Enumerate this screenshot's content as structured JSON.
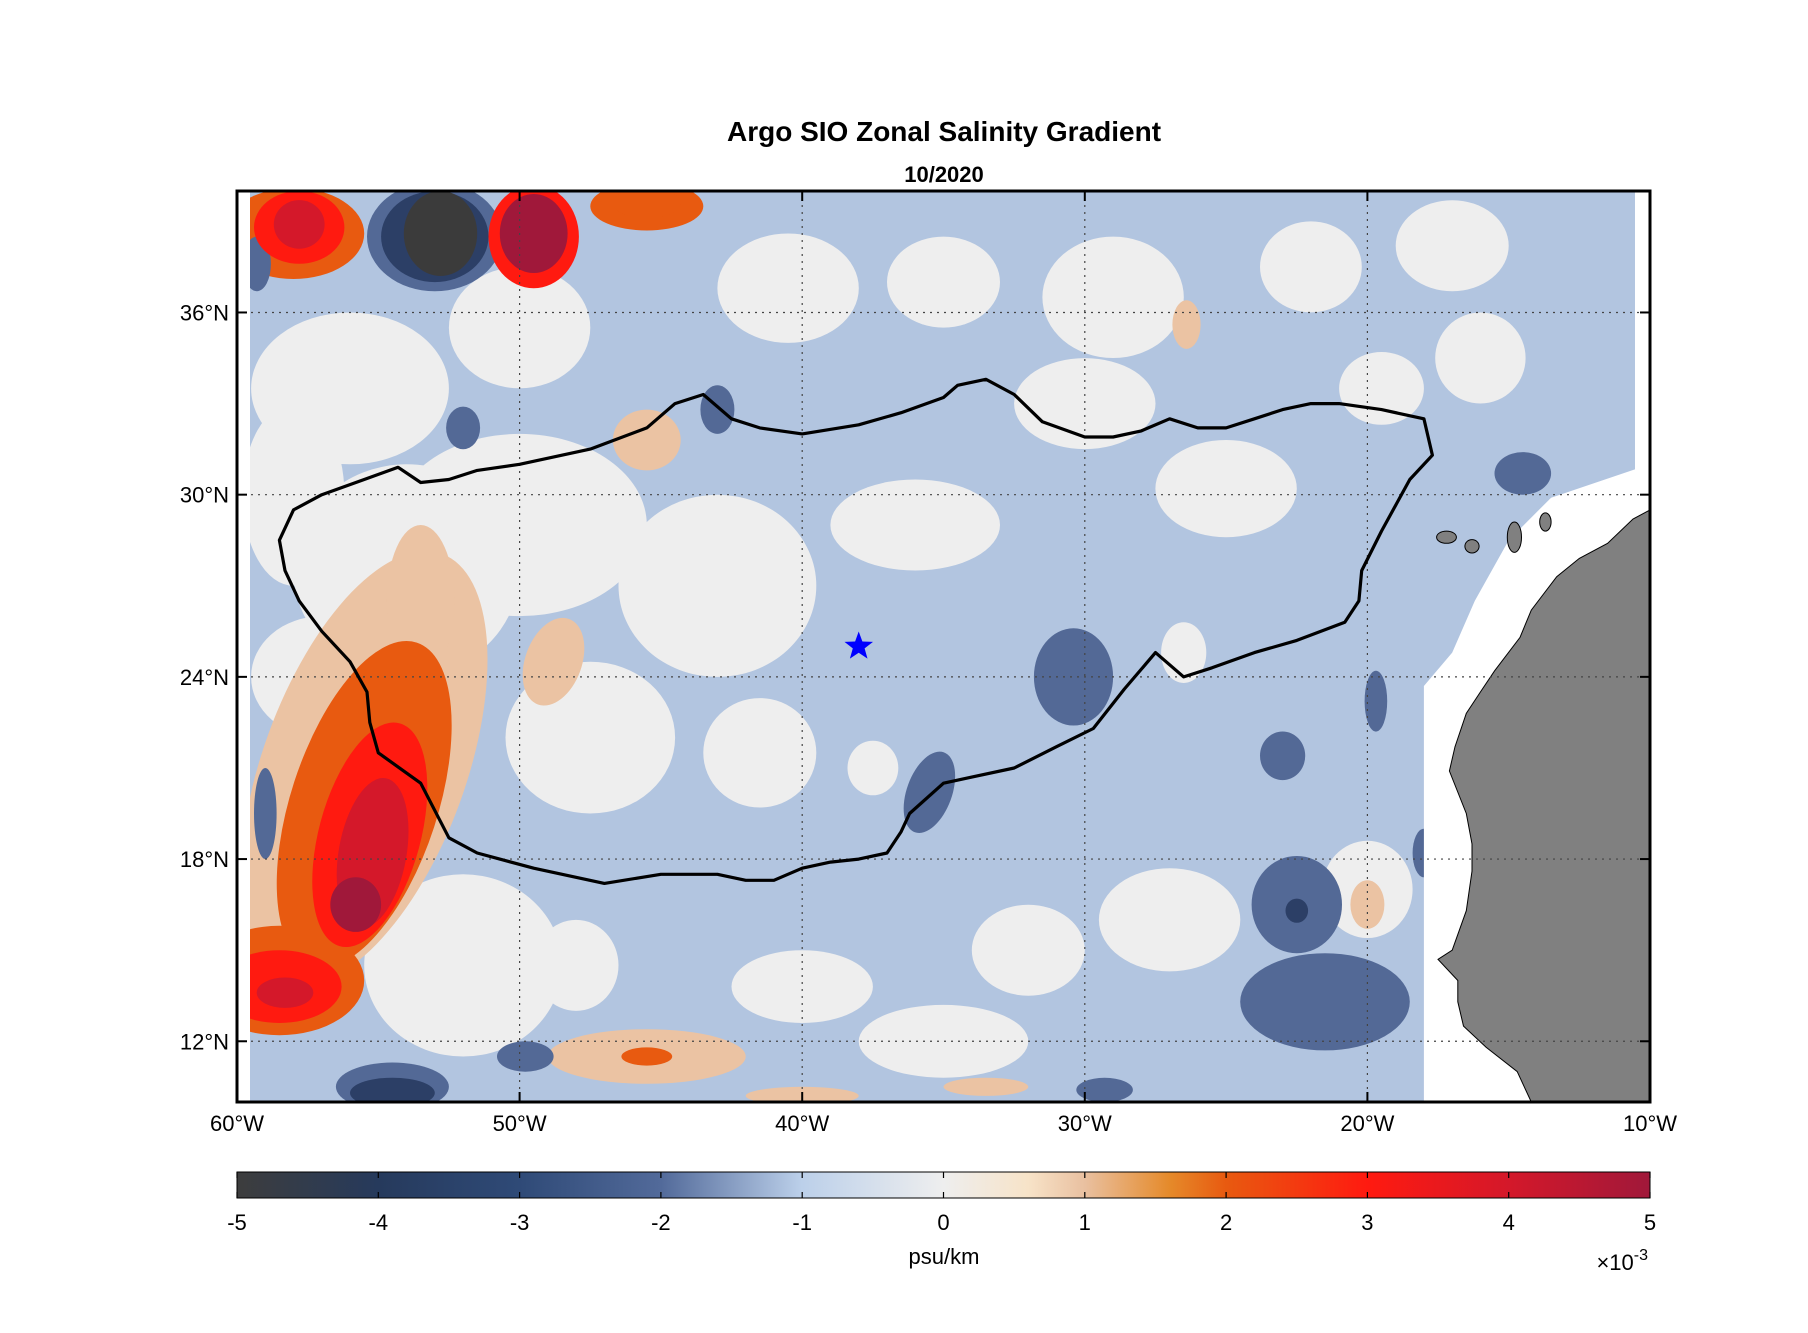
{
  "title": "Argo SIO Zonal Salinity Gradient",
  "subtitle": "10/2020",
  "map": {
    "lon_range": [
      -60,
      -10
    ],
    "lat_range": [
      10,
      40
    ],
    "x_ticks": [
      {
        "value": -60,
        "label": "60°W"
      },
      {
        "value": -50,
        "label": "50°W"
      },
      {
        "value": -40,
        "label": "40°W"
      },
      {
        "value": -30,
        "label": "30°W"
      },
      {
        "value": -20,
        "label": "20°W"
      },
      {
        "value": -10,
        "label": "10°W"
      }
    ],
    "y_ticks": [
      {
        "value": 12,
        "label": "12°N"
      },
      {
        "value": 18,
        "label": "18°N"
      },
      {
        "value": 24,
        "label": "24°N"
      },
      {
        "value": 30,
        "label": "30°N"
      },
      {
        "value": 36,
        "label": "36°N"
      }
    ],
    "grid": true,
    "land_color": "#808080",
    "marker": {
      "lon": -38,
      "lat": 25,
      "symbol": "star",
      "color": "#0000ff"
    },
    "outline": [
      [
        -58,
        29.5
      ],
      [
        -57,
        30
      ],
      [
        -55.5,
        30.5
      ],
      [
        -54.3,
        30.9
      ],
      [
        -53.5,
        30.4
      ],
      [
        -52.5,
        30.5
      ],
      [
        -51.5,
        30.8
      ],
      [
        -50,
        31
      ],
      [
        -47.5,
        31.5
      ],
      [
        -45.5,
        32.2
      ],
      [
        -44.5,
        33
      ],
      [
        -43.5,
        33.3
      ],
      [
        -42.5,
        32.5
      ],
      [
        -41.5,
        32.2
      ],
      [
        -40,
        32
      ],
      [
        -38,
        32.3
      ],
      [
        -36.5,
        32.7
      ],
      [
        -35,
        33.2
      ],
      [
        -34.5,
        33.6
      ],
      [
        -33.5,
        33.8
      ],
      [
        -32.5,
        33.3
      ],
      [
        -31.5,
        32.4
      ],
      [
        -30,
        31.9
      ],
      [
        -29,
        31.9
      ],
      [
        -28,
        32.1
      ],
      [
        -27,
        32.5
      ],
      [
        -26,
        32.2
      ],
      [
        -25,
        32.2
      ],
      [
        -24,
        32.5
      ],
      [
        -23,
        32.8
      ],
      [
        -22,
        33
      ],
      [
        -21,
        33
      ],
      [
        -19.5,
        32.8
      ],
      [
        -18,
        32.5
      ],
      [
        -17.7,
        31.3
      ],
      [
        -18.5,
        30.5
      ],
      [
        -19.5,
        28.8
      ],
      [
        -20.2,
        27.5
      ],
      [
        -20.3,
        26.5
      ],
      [
        -20.8,
        25.8
      ],
      [
        -22.5,
        25.2
      ],
      [
        -24,
        24.8
      ],
      [
        -25.5,
        24.3
      ],
      [
        -26.5,
        24
      ],
      [
        -27.5,
        24.8
      ],
      [
        -28.6,
        23.6
      ],
      [
        -29.7,
        22.3
      ],
      [
        -31,
        21.7
      ],
      [
        -32.5,
        21
      ],
      [
        -34,
        20.7
      ],
      [
        -35,
        20.5
      ],
      [
        -36.2,
        19.5
      ],
      [
        -36.5,
        18.9
      ],
      [
        -37,
        18.2
      ],
      [
        -38,
        18
      ],
      [
        -39,
        17.9
      ],
      [
        -40,
        17.7
      ],
      [
        -41,
        17.3
      ],
      [
        -42,
        17.3
      ],
      [
        -43,
        17.5
      ],
      [
        -45,
        17.5
      ],
      [
        -47,
        17.2
      ],
      [
        -49.5,
        17.7
      ],
      [
        -51.5,
        18.2
      ],
      [
        -52.5,
        18.7
      ],
      [
        -53.5,
        20.5
      ],
      [
        -55,
        21.5
      ],
      [
        -55.3,
        22.5
      ],
      [
        -55.4,
        23.5
      ],
      [
        -56,
        24.5
      ],
      [
        -57,
        25.5
      ],
      [
        -57.8,
        26.5
      ],
      [
        -58.3,
        27.5
      ],
      [
        -58.5,
        28.5
      ],
      [
        -58,
        29.5
      ]
    ]
  },
  "colorbar": {
    "range": [
      -5,
      5
    ],
    "ticks": [
      "-5",
      "-4",
      "-3",
      "-2",
      "-1",
      "0",
      "1",
      "2",
      "3",
      "4",
      "5"
    ],
    "label": "psu/km",
    "exponent_base": "×10",
    "exponent": "-3",
    "stops": [
      {
        "value": -5,
        "color": "#3d3d3d"
      },
      {
        "value": -4,
        "color": "#263a5c"
      },
      {
        "value": -3,
        "color": "#2f4a77"
      },
      {
        "value": -2,
        "color": "#526a9a"
      },
      {
        "value": -1,
        "color": "#bcd0ea"
      },
      {
        "value": 0,
        "color": "#eeeeee"
      },
      {
        "value": 0.6,
        "color": "#f7e3c8"
      },
      {
        "value": 1,
        "color": "#e9c0a0"
      },
      {
        "value": 1.6,
        "color": "#e58a2a"
      },
      {
        "value": 2,
        "color": "#e85a10"
      },
      {
        "value": 3,
        "color": "#ff1a10"
      },
      {
        "value": 4,
        "color": "#d4182a"
      },
      {
        "value": 5,
        "color": "#a0183a"
      }
    ]
  },
  "chart_data": {
    "type": "heatmap",
    "title": "Argo SIO Zonal Salinity Gradient",
    "subtitle": "10/2020",
    "colorbar_label": "psu/km",
    "colorbar_scale": "×10^-3",
    "value_range": [
      -5,
      5
    ],
    "background_value": -1,
    "features": [
      {
        "type": "ellipse",
        "lon": -55.5,
        "lat": 21.0,
        "rx": 3.6,
        "ry": 7.5,
        "value": 0.8,
        "rot": 20
      },
      {
        "type": "ellipse",
        "lon": -55.5,
        "lat": 19.8,
        "rx": 2.6,
        "ry": 5.6,
        "value": 2.2,
        "rot": 18
      },
      {
        "type": "ellipse",
        "lon": -55.3,
        "lat": 18.8,
        "rx": 1.8,
        "ry": 3.8,
        "value": 3.0,
        "rot": 15
      },
      {
        "type": "ellipse",
        "lon": -55.2,
        "lat": 18.2,
        "rx": 1.2,
        "ry": 2.5,
        "value": 4.0,
        "rot": 10
      },
      {
        "type": "ellipse",
        "lon": -55.8,
        "lat": 16.5,
        "rx": 0.9,
        "ry": 0.9,
        "value": 5.0,
        "rot": 0
      },
      {
        "type": "ellipse",
        "lon": -58.5,
        "lat": 14.0,
        "rx": 3.0,
        "ry": 1.8,
        "value": 2.2,
        "rot": 0
      },
      {
        "type": "ellipse",
        "lon": -58.5,
        "lat": 13.8,
        "rx": 2.2,
        "ry": 1.2,
        "value": 3.0,
        "rot": 0
      },
      {
        "type": "ellipse",
        "lon": -58.3,
        "lat": 13.6,
        "rx": 1.0,
        "ry": 0.5,
        "value": 4.0,
        "rot": 0
      },
      {
        "type": "ellipse",
        "lon": -53.5,
        "lat": 26.5,
        "rx": 1.2,
        "ry": 2.5,
        "value": 0.8,
        "rot": 0
      },
      {
        "type": "ellipse",
        "lon": -48.8,
        "lat": 24.5,
        "rx": 1.0,
        "ry": 1.5,
        "value": 0.8,
        "rot": 20
      },
      {
        "type": "ellipse",
        "lon": -45.5,
        "lat": 31.8,
        "rx": 1.2,
        "ry": 1.0,
        "value": 0.8,
        "rot": 0
      },
      {
        "type": "ellipse",
        "lon": -26.4,
        "lat": 35.6,
        "rx": 0.5,
        "ry": 0.8,
        "value": 0.8,
        "rot": 0
      },
      {
        "type": "ellipse",
        "lon": -20,
        "lat": 16.5,
        "rx": 0.6,
        "ry": 0.8,
        "value": 0.8,
        "rot": 0
      },
      {
        "type": "ellipse",
        "lon": -45.5,
        "lat": 11.5,
        "rx": 3.5,
        "ry": 0.9,
        "value": 0.8,
        "rot": 0
      },
      {
        "type": "ellipse",
        "lon": -45.5,
        "lat": 11.5,
        "rx": 0.9,
        "ry": 0.3,
        "value": 2.0,
        "rot": 0
      },
      {
        "type": "ellipse",
        "lon": -40,
        "lat": 10.2,
        "rx": 2.0,
        "ry": 0.3,
        "value": 0.8,
        "rot": 0
      },
      {
        "type": "ellipse",
        "lon": -33.5,
        "lat": 10.5,
        "rx": 1.5,
        "ry": 0.3,
        "value": 0.8,
        "rot": 0
      },
      {
        "type": "ellipse",
        "lon": -49.5,
        "lat": 38.5,
        "rx": 1.6,
        "ry": 1.7,
        "value": 3.0,
        "rot": 0
      },
      {
        "type": "ellipse",
        "lon": -49.5,
        "lat": 38.6,
        "rx": 1.2,
        "ry": 1.3,
        "value": 5.0,
        "rot": 0
      },
      {
        "type": "ellipse",
        "lon": -58,
        "lat": 38.6,
        "rx": 2.5,
        "ry": 1.5,
        "value": 2.0,
        "rot": 0
      },
      {
        "type": "ellipse",
        "lon": -57.8,
        "lat": 38.8,
        "rx": 1.6,
        "ry": 1.2,
        "value": 3.0,
        "rot": 0
      },
      {
        "type": "ellipse",
        "lon": -57.8,
        "lat": 38.9,
        "rx": 0.9,
        "ry": 0.8,
        "value": 4.0,
        "rot": 0
      },
      {
        "type": "ellipse",
        "lon": -53,
        "lat": 38.5,
        "rx": 2.4,
        "ry": 1.8,
        "value": -2.0,
        "rot": 0
      },
      {
        "type": "ellipse",
        "lon": -53,
        "lat": 38.5,
        "rx": 1.9,
        "ry": 1.5,
        "value": -3.0,
        "rot": 0
      },
      {
        "type": "ellipse",
        "lon": -52.8,
        "lat": 38.6,
        "rx": 1.3,
        "ry": 1.4,
        "value": -5.0,
        "rot": 0
      },
      {
        "type": "ellipse",
        "lon": -45.5,
        "lat": 39.5,
        "rx": 2.0,
        "ry": 0.8,
        "value": 1.5,
        "rot": 0
      },
      {
        "type": "ellipse",
        "lon": -45.5,
        "lat": 39.6,
        "rx": 1.2,
        "ry": 0.5,
        "value": 2.2,
        "rot": 0
      },
      {
        "type": "ellipse",
        "lon": -54.5,
        "lat": 10.5,
        "rx": 2.0,
        "ry": 0.8,
        "value": -2.0,
        "rot": 0
      },
      {
        "type": "ellipse",
        "lon": -54.5,
        "lat": 10.3,
        "rx": 1.5,
        "ry": 0.5,
        "value": -3.0,
        "rot": 0
      },
      {
        "type": "ellipse",
        "lon": -49.8,
        "lat": 11.5,
        "rx": 1.0,
        "ry": 0.5,
        "value": -2.0,
        "rot": 0
      },
      {
        "type": "ellipse",
        "lon": -30.4,
        "lat": 24.0,
        "rx": 1.4,
        "ry": 1.6,
        "value": -2.0,
        "rot": 0
      },
      {
        "type": "ellipse",
        "lon": -35.5,
        "lat": 20.2,
        "rx": 0.8,
        "ry": 1.4,
        "value": -2.0,
        "rot": 20
      },
      {
        "type": "ellipse",
        "lon": -22.5,
        "lat": 16.5,
        "rx": 1.6,
        "ry": 1.6,
        "value": -2.0,
        "rot": 0
      },
      {
        "type": "ellipse",
        "lon": -22.5,
        "lat": 16.3,
        "rx": 0.4,
        "ry": 0.4,
        "value": -3.0,
        "rot": 0
      },
      {
        "type": "ellipse",
        "lon": -21.5,
        "lat": 13.3,
        "rx": 3.0,
        "ry": 1.6,
        "value": -2.0,
        "rot": 0
      },
      {
        "type": "ellipse",
        "lon": -23,
        "lat": 21.4,
        "rx": 0.8,
        "ry": 0.8,
        "value": -2.0,
        "rot": 0
      },
      {
        "type": "ellipse",
        "lon": -19.7,
        "lat": 23.2,
        "rx": 0.4,
        "ry": 1.0,
        "value": -2.0,
        "rot": 0
      },
      {
        "type": "ellipse",
        "lon": -14.5,
        "lat": 30.7,
        "rx": 1.0,
        "ry": 0.7,
        "value": -2.0,
        "rot": 0
      },
      {
        "type": "ellipse",
        "lon": -52,
        "lat": 32.2,
        "rx": 0.6,
        "ry": 0.7,
        "value": -2.0,
        "rot": 0
      },
      {
        "type": "ellipse",
        "lon": -43,
        "lat": 32.8,
        "rx": 0.6,
        "ry": 0.8,
        "value": -2.0,
        "rot": 0
      },
      {
        "type": "ellipse",
        "lon": -59,
        "lat": 19.5,
        "rx": 0.4,
        "ry": 1.5,
        "value": -2.0,
        "rot": 0
      },
      {
        "type": "ellipse",
        "lon": -59.3,
        "lat": 37.6,
        "rx": 0.5,
        "ry": 0.9,
        "value": -2.0,
        "rot": 0
      },
      {
        "type": "ellipse",
        "lon": -29.3,
        "lat": 10.4,
        "rx": 1.0,
        "ry": 0.4,
        "value": -2.0,
        "rot": 0
      },
      {
        "type": "ellipse",
        "lon": -18,
        "lat": 18.2,
        "rx": 0.4,
        "ry": 0.8,
        "value": -2.0,
        "rot": 0
      },
      {
        "type": "ellipse",
        "lon": -47.5,
        "lat": 22.0,
        "rx": 3.0,
        "ry": 2.5,
        "value": 0.0,
        "rot": 0
      },
      {
        "type": "ellipse",
        "lon": -54,
        "lat": 27.5,
        "rx": 4.0,
        "ry": 3.5,
        "value": 0.0,
        "rot": 0
      },
      {
        "type": "ellipse",
        "lon": -50,
        "lat": 29.0,
        "rx": 4.5,
        "ry": 3.0,
        "value": 0.0,
        "rot": 0
      },
      {
        "type": "ellipse",
        "lon": -43,
        "lat": 27.0,
        "rx": 3.5,
        "ry": 3.0,
        "value": 0.0,
        "rot": 0
      },
      {
        "type": "ellipse",
        "lon": -52,
        "lat": 14.5,
        "rx": 3.5,
        "ry": 3.0,
        "value": 0.0,
        "rot": 0
      },
      {
        "type": "ellipse",
        "lon": -56,
        "lat": 33.5,
        "rx": 3.5,
        "ry": 2.5,
        "value": 0.0,
        "rot": 0
      },
      {
        "type": "ellipse",
        "lon": -50,
        "lat": 35.5,
        "rx": 2.5,
        "ry": 2.0,
        "value": 0.0,
        "rot": 0
      },
      {
        "type": "ellipse",
        "lon": -40.5,
        "lat": 36.8,
        "rx": 2.5,
        "ry": 1.8,
        "value": 0.0,
        "rot": 0
      },
      {
        "type": "ellipse",
        "lon": -41,
        "lat": 26.8,
        "rx": 1.4,
        "ry": 1.3,
        "value": 0.0,
        "rot": 0
      },
      {
        "type": "ellipse",
        "lon": -41.5,
        "lat": 21.5,
        "rx": 2.0,
        "ry": 1.8,
        "value": 0.0,
        "rot": 0
      },
      {
        "type": "ellipse",
        "lon": -37.5,
        "lat": 21.0,
        "rx": 0.9,
        "ry": 0.9,
        "value": 0.0,
        "rot": 0
      },
      {
        "type": "ellipse",
        "lon": -36,
        "lat": 29.0,
        "rx": 3.0,
        "ry": 1.5,
        "value": 0.0,
        "rot": 0
      },
      {
        "type": "ellipse",
        "lon": -30,
        "lat": 33.0,
        "rx": 2.5,
        "ry": 1.5,
        "value": 0.0,
        "rot": 0
      },
      {
        "type": "ellipse",
        "lon": -25,
        "lat": 30.2,
        "rx": 2.5,
        "ry": 1.6,
        "value": 0.0,
        "rot": 0
      },
      {
        "type": "ellipse",
        "lon": -29,
        "lat": 36.5,
        "rx": 2.5,
        "ry": 2.0,
        "value": 0.0,
        "rot": 0
      },
      {
        "type": "ellipse",
        "lon": -22,
        "lat": 37.5,
        "rx": 1.8,
        "ry": 1.5,
        "value": 0.0,
        "rot": 0
      },
      {
        "type": "ellipse",
        "lon": -16,
        "lat": 34.5,
        "rx": 1.6,
        "ry": 1.5,
        "value": 0.0,
        "rot": 0
      },
      {
        "type": "ellipse",
        "lon": -17,
        "lat": 38.2,
        "rx": 2.0,
        "ry": 1.5,
        "value": 0.0,
        "rot": 0
      },
      {
        "type": "ellipse",
        "lon": -19.5,
        "lat": 33.5,
        "rx": 1.5,
        "ry": 1.2,
        "value": 0.0,
        "rot": 0
      },
      {
        "type": "ellipse",
        "lon": -27,
        "lat": 16.0,
        "rx": 2.5,
        "ry": 1.7,
        "value": 0.0,
        "rot": 0
      },
      {
        "type": "ellipse",
        "lon": -32,
        "lat": 15.0,
        "rx": 2.0,
        "ry": 1.5,
        "value": 0.0,
        "rot": 0
      },
      {
        "type": "ellipse",
        "lon": -20,
        "lat": 17.0,
        "rx": 1.6,
        "ry": 1.6,
        "value": 0.0,
        "rot": 0
      },
      {
        "type": "ellipse",
        "lon": -40,
        "lat": 13.8,
        "rx": 2.5,
        "ry": 1.2,
        "value": 0.0,
        "rot": 0
      },
      {
        "type": "ellipse",
        "lon": -48,
        "lat": 14.5,
        "rx": 1.5,
        "ry": 1.5,
        "value": 0.0,
        "rot": 0
      },
      {
        "type": "ellipse",
        "lon": -35,
        "lat": 12.0,
        "rx": 3.0,
        "ry": 1.2,
        "value": 0.0,
        "rot": 0
      },
      {
        "type": "ellipse",
        "lon": -26.5,
        "lat": 24.8,
        "rx": 0.8,
        "ry": 1.0,
        "value": 0.0,
        "rot": 0
      },
      {
        "type": "ellipse",
        "lon": -35,
        "lat": 37.0,
        "rx": 2.0,
        "ry": 1.5,
        "value": 0.0,
        "rot": 0
      },
      {
        "type": "ellipse",
        "lon": -57,
        "lat": 24.0,
        "rx": 2.5,
        "ry": 2.0,
        "value": 0.0,
        "rot": 0
      },
      {
        "type": "ellipse",
        "lon": -58,
        "lat": 30.0,
        "rx": 1.8,
        "ry": 3.0,
        "value": 0.0,
        "rot": 0
      }
    ]
  }
}
